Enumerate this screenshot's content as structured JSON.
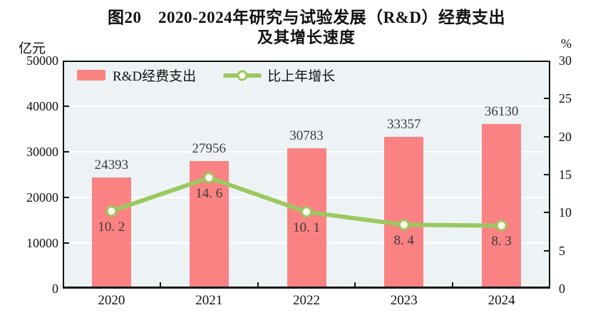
{
  "title": {
    "line1": "图20　2020-2024年研究与试验发展（R&D）经费支出",
    "line2": "及其增长速度"
  },
  "axes": {
    "left_unit": "亿元",
    "right_unit": "%",
    "left_ticks": [
      "50000",
      "40000",
      "30000",
      "20000",
      "10000",
      "0"
    ],
    "right_ticks": [
      "30",
      "25",
      "20",
      "15",
      "10",
      "5",
      "0"
    ]
  },
  "legend": {
    "bar_label": "R&D经费支出",
    "line_label": "比上年增长"
  },
  "colors": {
    "bar": "#fa8282",
    "line": "#9bc860",
    "marker_fill": "#fffdf0",
    "plot_bg": "#edf3f5",
    "grid": "#ffffff",
    "frame": "#141414",
    "value_label": "#3c3c3c"
  },
  "chart_data": {
    "type": "bar",
    "combo": "bar+line",
    "categories": [
      "2020",
      "2021",
      "2022",
      "2023",
      "2024"
    ],
    "series": [
      {
        "name": "R&D经费支出",
        "type": "bar",
        "axis": "left",
        "values": [
          24393,
          27956,
          30783,
          33357,
          36130
        ],
        "labels": [
          "24393",
          "27956",
          "30783",
          "33357",
          "36130"
        ]
      },
      {
        "name": "比上年增长",
        "type": "line",
        "axis": "right",
        "values": [
          10.2,
          14.6,
          10.1,
          8.4,
          8.3
        ],
        "labels": [
          "10. 2",
          "14. 6",
          "10. 1",
          "8. 4",
          "8. 3"
        ]
      }
    ],
    "title": "图20 2020-2024年研究与试验发展（R&D）经费支出及其增长速度",
    "xlabel": "",
    "ylabel_left": "亿元",
    "ylabel_right": "%",
    "ylim_left": [
      0,
      50000
    ],
    "ylim_right": [
      0,
      30
    ],
    "grid": true,
    "legend_position": "top-left-inside"
  }
}
